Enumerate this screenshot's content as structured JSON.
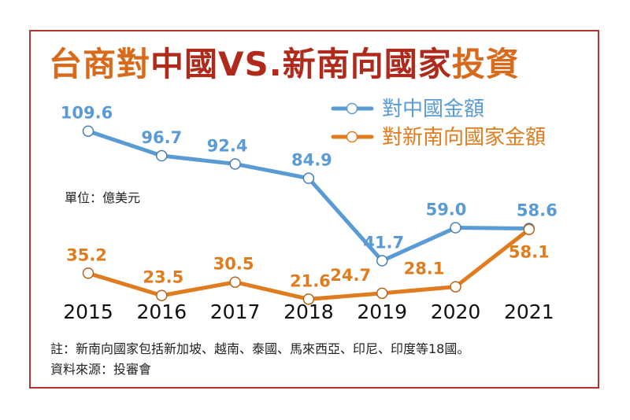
{
  "title": {
    "part1": "台商對",
    "part2": "中國VS.新南向國家",
    "part3": "投資"
  },
  "unit_label": "單位：億美元",
  "note": "註：新南向國家包括新加坡、越南、泰國、馬來西亞、印尼、印度等18國。",
  "source": "資料來源：投審會",
  "colors": {
    "china": "#5b9bd5",
    "newsouth": "#e07c1e",
    "china_point_fill": "#ffffff",
    "newsouth_point_fill": "#ffffff",
    "frame": "#b5332b"
  },
  "chart_data": {
    "type": "line",
    "categories": [
      "2015",
      "2016",
      "2017",
      "2018",
      "2019",
      "2020",
      "2021"
    ],
    "series": [
      {
        "name": "對中國金額",
        "values": [
          109.6,
          96.7,
          92.4,
          84.9,
          41.7,
          59.0,
          58.6
        ],
        "labels": [
          "109.6",
          "96.7",
          "92.4",
          "84.9",
          "41.7",
          "59.0",
          "58.6"
        ]
      },
      {
        "name": "對新南向國家金額",
        "values": [
          35.2,
          23.5,
          30.5,
          21.6,
          24.7,
          28.1,
          58.1
        ],
        "labels": [
          "35.2",
          "23.5",
          "30.5",
          "21.6",
          "24.7",
          "28.1",
          "58.1"
        ]
      }
    ],
    "legend_position": "top-right",
    "grid": false
  }
}
